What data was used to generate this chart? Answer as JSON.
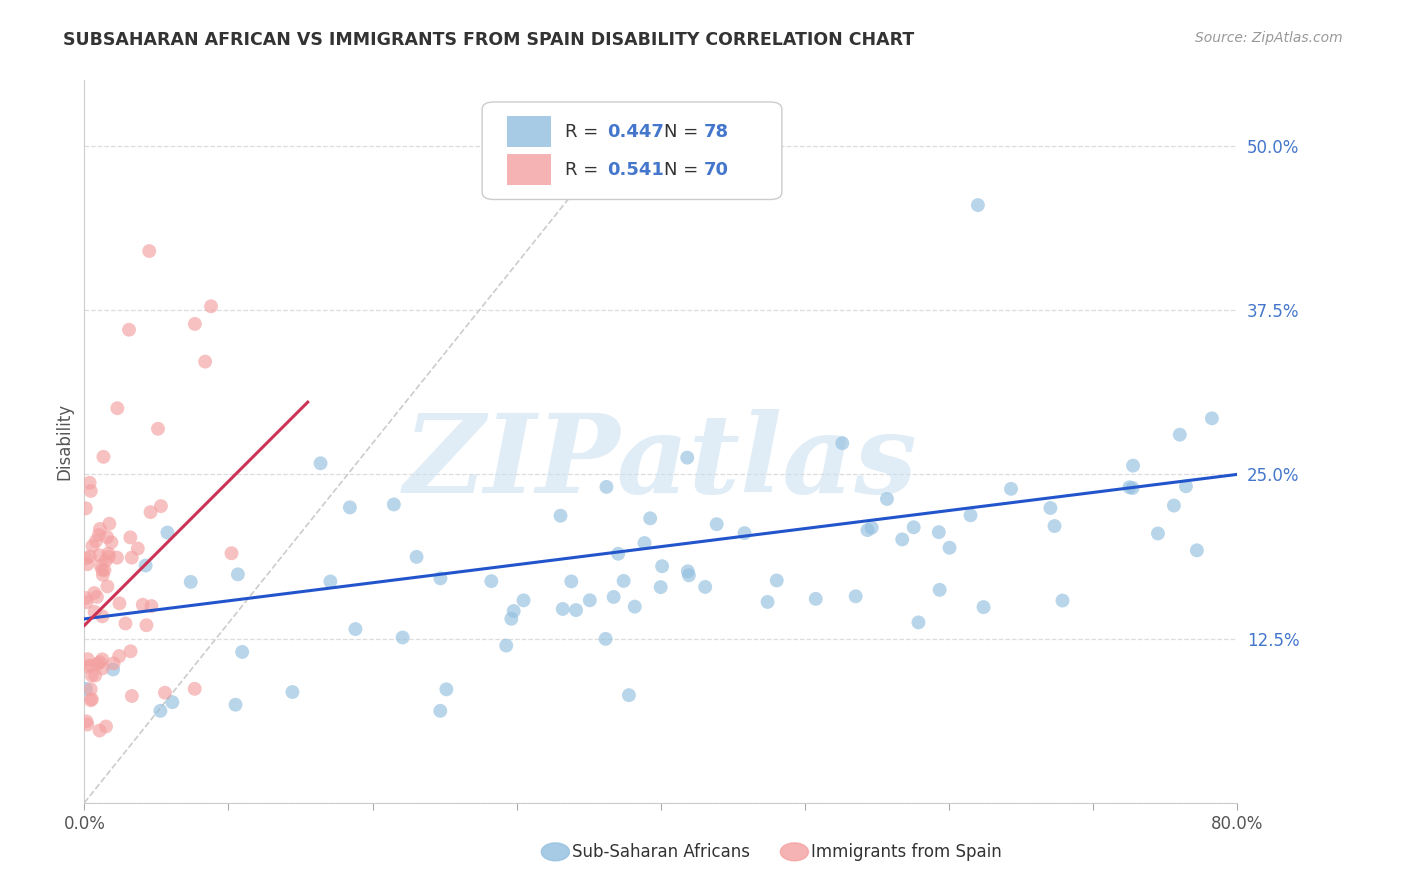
{
  "title": "SUBSAHARAN AFRICAN VS IMMIGRANTS FROM SPAIN DISABILITY CORRELATION CHART",
  "source": "Source: ZipAtlas.com",
  "ylabel": "Disability",
  "yticks": [
    0.0,
    0.125,
    0.25,
    0.375,
    0.5
  ],
  "ytick_labels": [
    "",
    "12.5%",
    "25.0%",
    "37.5%",
    "50.0%"
  ],
  "xlim": [
    0.0,
    0.8
  ],
  "ylim": [
    0.0,
    0.55
  ],
  "blue_R": 0.447,
  "blue_N": 78,
  "pink_R": 0.541,
  "pink_N": 70,
  "blue_color": "#92bfdf",
  "pink_color": "#f4a0a0",
  "blue_line_color": "#2255cc",
  "pink_line_color": "#cc3355",
  "legend_text_color": "#4477cc",
  "legend_blue_label": "Sub-Saharan Africans",
  "legend_pink_label": "Immigrants from Spain",
  "watermark": "ZIPatlas",
  "watermark_color": "#c8dff0",
  "title_color": "#333333",
  "source_color": "#999999",
  "axis_label_color": "#555555",
  "ytick_color": "#4477cc",
  "grid_color": "#dddddd",
  "spine_color": "#cccccc"
}
